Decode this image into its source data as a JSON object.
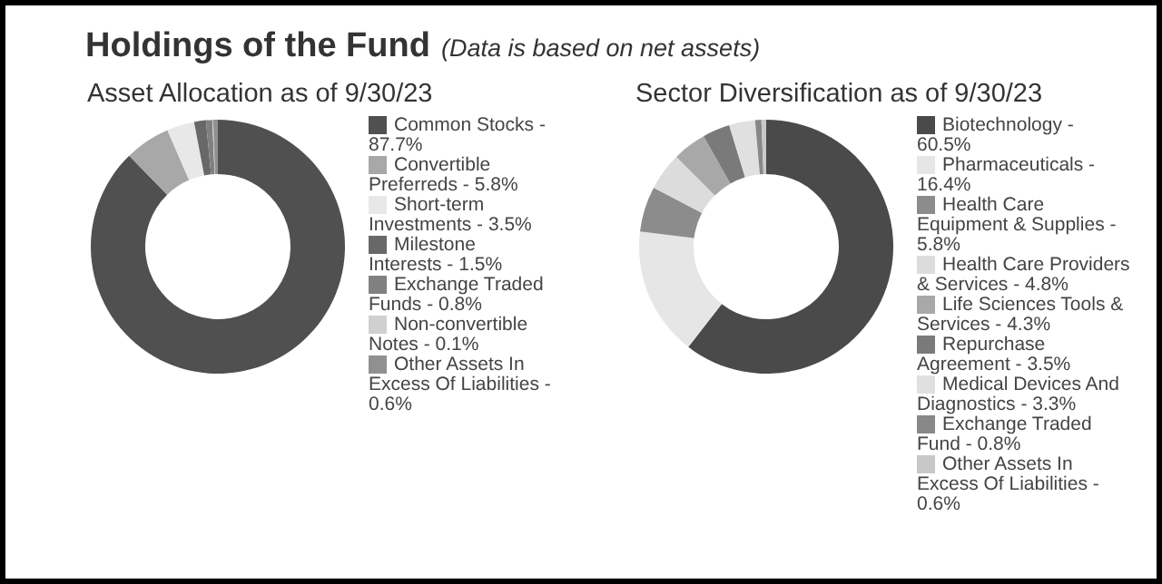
{
  "chart_data": [
    {
      "type": "donut",
      "title": "Asset Allocation as of 9/30/23",
      "annotations": [
        "Holdings of the Fund",
        "(Data is based on net assets)"
      ],
      "legend": "right",
      "categories": [
        "Common Stocks - 87.7%",
        "Convertible Preferreds - 5.8%",
        "Short-term Investments - 3.5%",
        "Milestone Interests - 1.5%",
        "Exchange Traded Funds - 0.8%",
        "Non-convertible Notes - 0.1%",
        "Other Assets In Excess Of Liabilities - 0.6%"
      ],
      "values": [
        87.7,
        5.8,
        3.5,
        1.5,
        0.8,
        0.1,
        0.6
      ],
      "colors": [
        "#505050",
        "#a8a8a8",
        "#e8e8e8",
        "#686868",
        "#808080",
        "#d0d0d0",
        "#909090"
      ]
    },
    {
      "type": "donut",
      "title": "Sector Diversification as of 9/30/23",
      "legend": "right",
      "categories": [
        "Biotechnology - 60.5%",
        "Pharmaceuticals - 16.4%",
        "Health Care Equipment & Supplies - 5.8%",
        "Health Care Providers & Services - 4.8%",
        "Life Sciences Tools & Services - 4.3%",
        "Repurchase Agreement - 3.5%",
        "Medical Devices And Diagnostics - 3.3%",
        "Exchange Traded Fund  - 0.8%",
        "Other Assets In Excess Of Liabilities - 0.6%"
      ],
      "values": [
        60.5,
        16.4,
        5.8,
        4.8,
        4.3,
        3.5,
        3.3,
        0.8,
        0.6
      ],
      "colors": [
        "#4a4a4a",
        "#e6e6e6",
        "#8c8c8c",
        "#dcdcdc",
        "#a8a8a8",
        "#7a7a7a",
        "#e0e0e0",
        "#888888",
        "#c8c8c8"
      ]
    }
  ]
}
